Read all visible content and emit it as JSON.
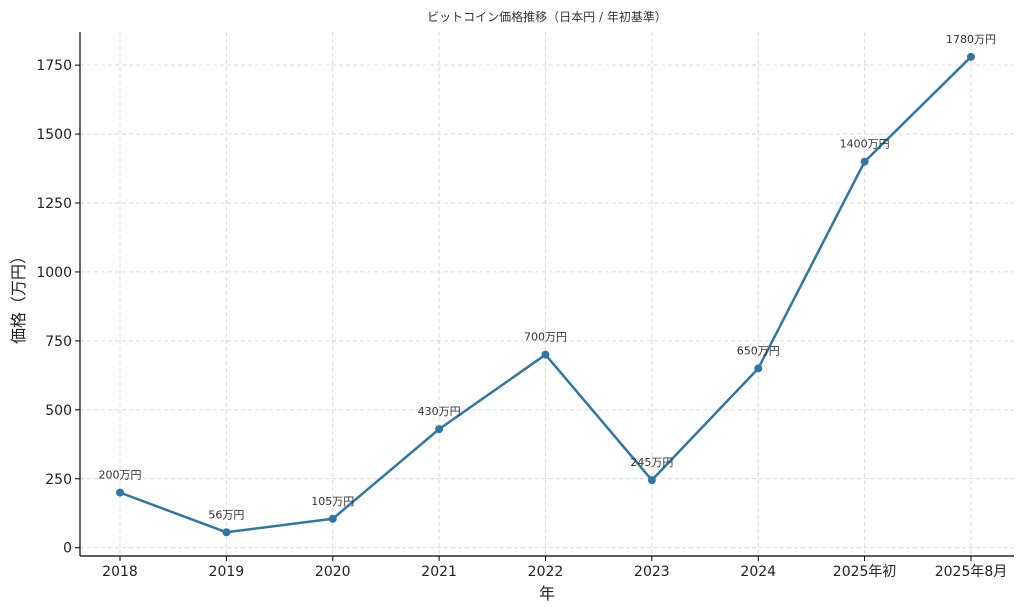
{
  "chart_data": {
    "type": "line",
    "title": "ビットコイン価格推移（日本円 / 年初基準）",
    "xlabel": "年",
    "ylabel": "価格（万円）",
    "categories": [
      "2018",
      "2019",
      "2020",
      "2021",
      "2022",
      "2023",
      "2024",
      "2025年初",
      "2025年8月"
    ],
    "series": [
      {
        "values": [
          200,
          56,
          105,
          430,
          700,
          245,
          650,
          1400,
          1780
        ],
        "data_labels": [
          "200万円",
          "56万円",
          "105万円",
          "430万円",
          "700万円",
          "245万円",
          "650万円",
          "1400万円",
          "1780万円"
        ]
      }
    ],
    "ylim": [
      -30,
      1870
    ],
    "yticks": [
      0,
      250,
      500,
      750,
      1000,
      1250,
      1500,
      1750
    ],
    "grid": true,
    "line_color": "#2e77a4"
  }
}
